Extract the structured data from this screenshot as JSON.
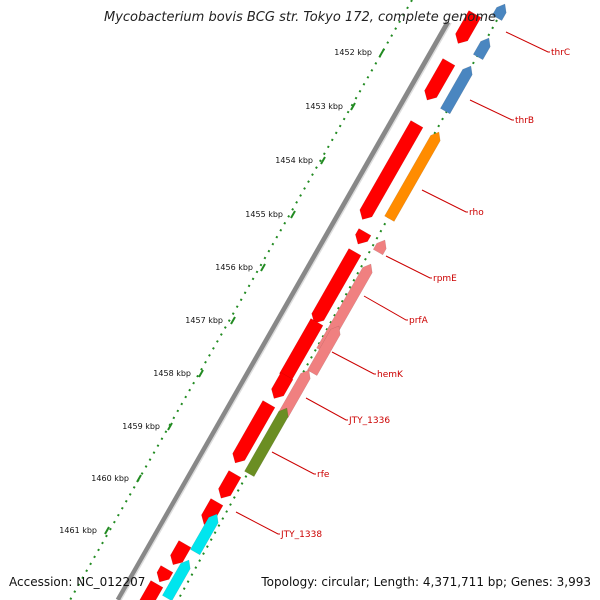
{
  "title": "Mycobacterium bovis BCG str. Tokyo 172, complete genome",
  "footer": {
    "accession": "Accession: NC_012207",
    "summary": "Topology: circular; Length: 4,371,711 bp; Genes: 3,993"
  },
  "ticks": [
    "1452 kbp",
    "1453 kbp",
    "1454 kbp",
    "1455 kbp",
    "1456 kbp",
    "1457 kbp",
    "1458 kbp",
    "1459 kbp",
    "1460 kbp",
    "1461 kbp"
  ],
  "genes": [
    {
      "name": "thrC",
      "color": "#4a86c0"
    },
    {
      "name": "thrB",
      "color": "#4a86c0"
    },
    {
      "name": "rho",
      "color": "#ff8c00"
    },
    {
      "name": "rpmE",
      "color": "#f08080"
    },
    {
      "name": "prfA",
      "color": "#f08080"
    },
    {
      "name": "hemK",
      "color": "#f08080"
    },
    {
      "name": "JTY_1336",
      "color": "#f08080"
    },
    {
      "name": "rfe",
      "color": "#6b8e23"
    },
    {
      "name": "JTY_1338",
      "color": "#00e5ee"
    }
  ],
  "colors": {
    "backbone": "#888888",
    "cds_track": "#ff0000",
    "tick": "#228b22",
    "label": "#cc0000"
  }
}
